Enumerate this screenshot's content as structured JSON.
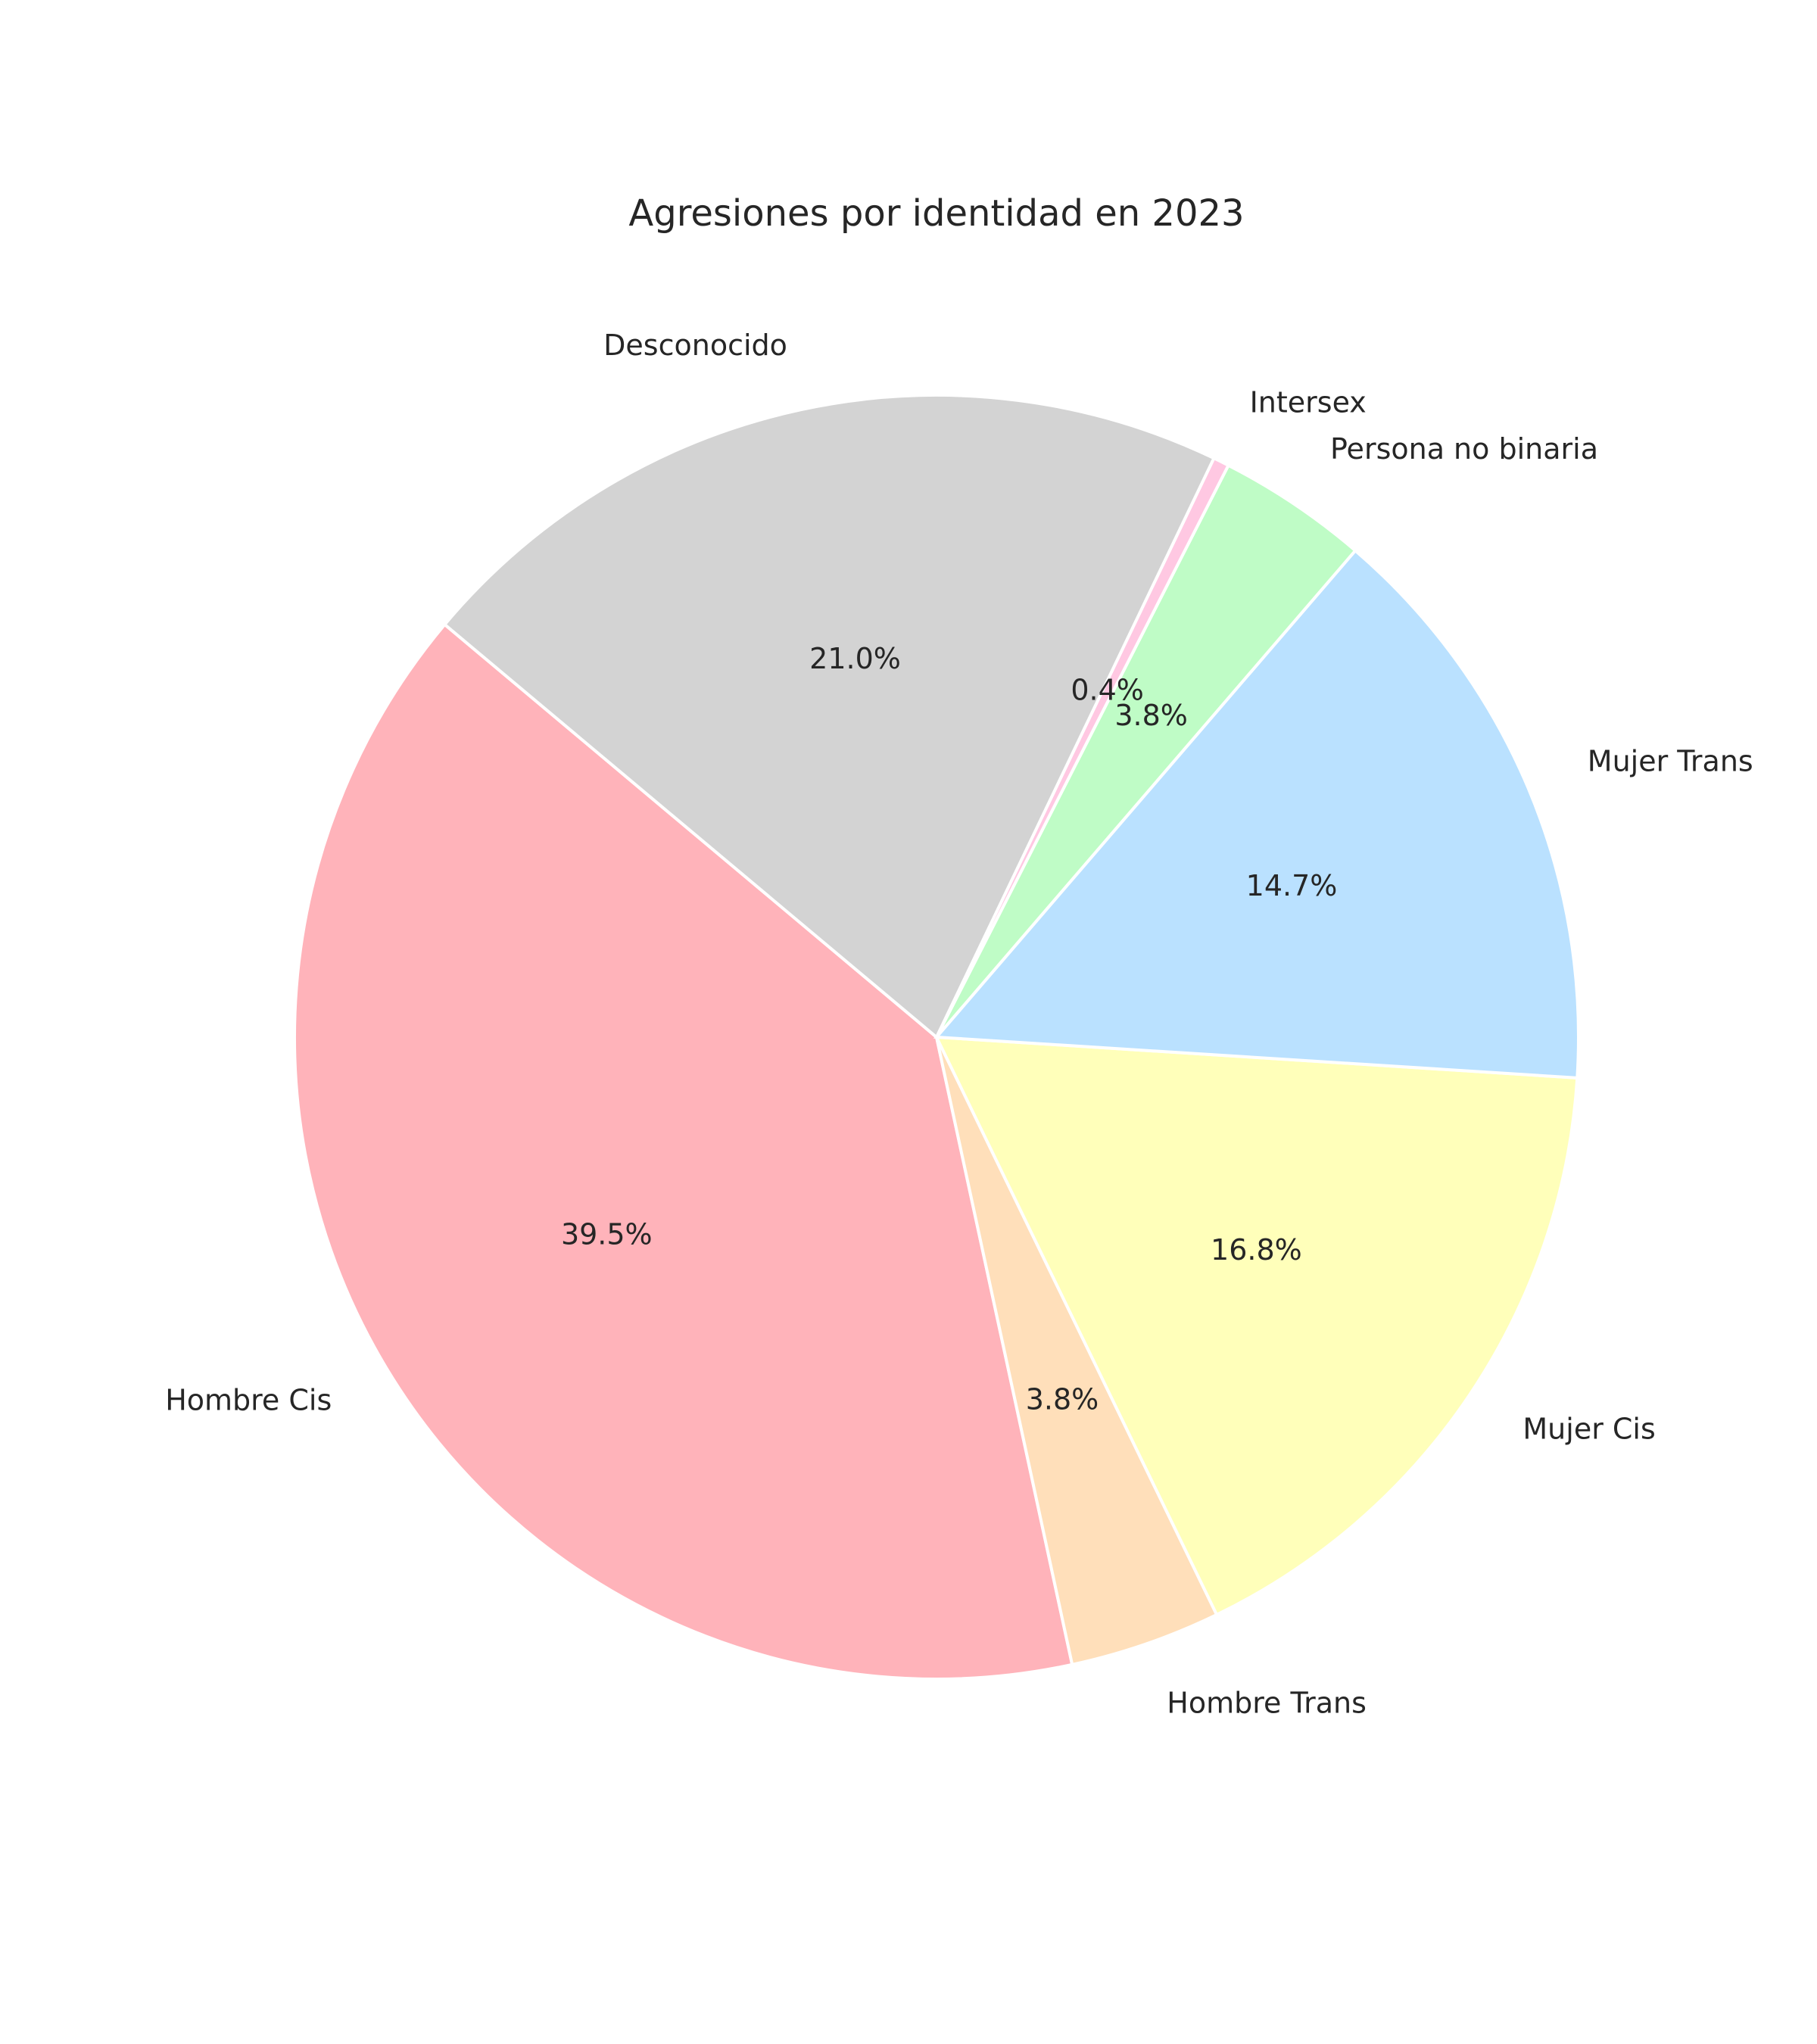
{
  "chart_data": {
    "type": "pie",
    "title": "Agresiones por identidad en 2023",
    "start_angle_deg": 140,
    "direction": "counterclockwise",
    "slices": [
      {
        "label": "Hombre Cis",
        "value": 39.5,
        "pct_label": "39.5%",
        "color": "#FFB3BA"
      },
      {
        "label": "Hombre Trans",
        "value": 3.8,
        "pct_label": "3.8%",
        "color": "#FFDFBA"
      },
      {
        "label": "Mujer Cis",
        "value": 16.8,
        "pct_label": "16.8%",
        "color": "#FFFFBA"
      },
      {
        "label": "Mujer Trans",
        "value": 14.7,
        "pct_label": "14.7%",
        "color": "#BAE1FF"
      },
      {
        "label": "Persona no binaria",
        "value": 3.8,
        "pct_label": "3.8%",
        "color": "#BFFCC6"
      },
      {
        "label": "Intersex",
        "value": 0.4,
        "pct_label": "0.4%",
        "color": "#FFC8E2"
      },
      {
        "label": "Desconocido",
        "value": 21.0,
        "pct_label": "21.0%",
        "color": "#D3D3D3"
      }
    ]
  }
}
